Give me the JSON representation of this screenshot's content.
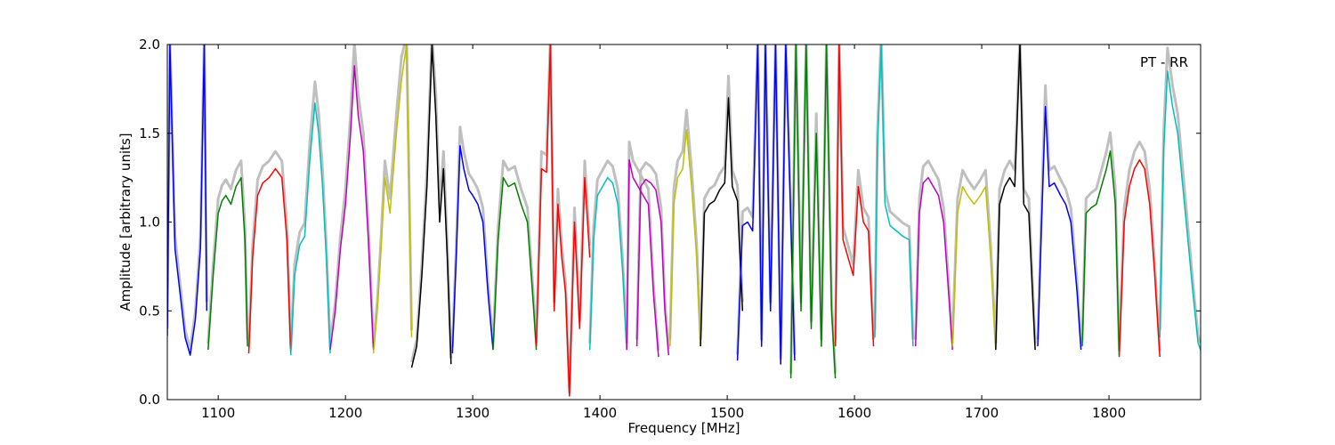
{
  "chart_data": {
    "type": "line",
    "xlabel": "Frequency [MHz]",
    "ylabel": "Amplitude [arbitrary units]",
    "annotation": "PT - RR",
    "annotation_position": "top-right",
    "xlim": [
      1060,
      1872
    ],
    "ylim": [
      0.0,
      2.0
    ],
    "xticks": [
      1100,
      1200,
      1300,
      1400,
      1500,
      1600,
      1700,
      1800
    ],
    "xtick_labels": [
      "1100",
      "1200",
      "1300",
      "1400",
      "1500",
      "1600",
      "1700",
      "1800"
    ],
    "yticks": [
      0.0,
      0.5,
      1.0,
      1.5,
      2.0
    ],
    "ytick_labels": [
      "0.0",
      "0.5",
      "1.0",
      "1.5",
      "2.0"
    ],
    "grid": false,
    "background_series_color": "#bfbfbf",
    "series": [
      {
        "color": "#0000ff",
        "x": [
          1060,
          1062,
          1066,
          1070,
          1074,
          1078,
          1082,
          1086,
          1089,
          1091
        ],
        "y": [
          0.36,
          2.0,
          0.85,
          0.6,
          0.35,
          0.25,
          0.45,
          0.85,
          2.0,
          0.5
        ]
      },
      {
        "color": "#008000",
        "x": [
          1092,
          1096,
          1100,
          1103,
          1106,
          1110,
          1114,
          1118,
          1121,
          1123
        ],
        "y": [
          0.28,
          0.7,
          1.05,
          1.12,
          1.15,
          1.1,
          1.2,
          1.25,
          0.9,
          0.3
        ]
      },
      {
        "color": "#ff0000",
        "x": [
          1124,
          1127,
          1131,
          1135,
          1140,
          1145,
          1150,
          1154,
          1157
        ],
        "y": [
          0.26,
          0.8,
          1.15,
          1.22,
          1.25,
          1.3,
          1.25,
          0.9,
          0.26
        ]
      },
      {
        "color": "#00bfbf",
        "x": [
          1157,
          1160,
          1164,
          1168,
          1172,
          1176,
          1179,
          1182,
          1185,
          1188
        ],
        "y": [
          0.25,
          0.7,
          0.87,
          0.92,
          1.35,
          1.67,
          1.5,
          1.2,
          0.8,
          0.26
        ]
      },
      {
        "color": "#bf00bf",
        "x": [
          1188,
          1192,
          1196,
          1200,
          1204,
          1207,
          1210,
          1214,
          1218,
          1222
        ],
        "y": [
          0.28,
          0.5,
          0.85,
          1.1,
          1.5,
          1.88,
          1.6,
          1.4,
          0.9,
          0.28
        ]
      },
      {
        "color": "#bfbf00",
        "x": [
          1222,
          1225,
          1228,
          1231,
          1235,
          1240,
          1244,
          1248,
          1252
        ],
        "y": [
          0.26,
          0.5,
          0.85,
          1.25,
          1.05,
          1.5,
          1.8,
          2.0,
          0.35
        ]
      },
      {
        "color": "#000000",
        "x": [
          1252,
          1256,
          1260,
          1264,
          1268,
          1271,
          1274,
          1277,
          1280,
          1283
        ],
        "y": [
          0.18,
          0.3,
          0.7,
          1.2,
          2.0,
          1.6,
          1.0,
          1.3,
          0.8,
          0.2
        ]
      },
      {
        "color": "#0000ff",
        "x": [
          1284,
          1287,
          1290,
          1293,
          1297,
          1300,
          1304,
          1308,
          1312,
          1316
        ],
        "y": [
          0.26,
          0.8,
          1.43,
          1.3,
          1.18,
          1.15,
          1.1,
          1.0,
          0.6,
          0.28
        ]
      },
      {
        "color": "#008000",
        "x": [
          1316,
          1320,
          1324,
          1328,
          1333,
          1338,
          1343,
          1348,
          1350
        ],
        "y": [
          0.28,
          0.9,
          1.25,
          1.2,
          1.22,
          1.1,
          1.0,
          0.5,
          0.28
        ]
      },
      {
        "color": "#ff0000",
        "x": [
          1350,
          1354,
          1358,
          1361,
          1364,
          1367,
          1370,
          1373,
          1376,
          1380,
          1384,
          1388,
          1392
        ],
        "y": [
          0.3,
          1.3,
          1.28,
          2.0,
          0.5,
          1.1,
          0.8,
          0.6,
          0.02,
          1.0,
          0.4,
          1.25,
          0.8
        ]
      },
      {
        "color": "#00bfbf",
        "x": [
          1392,
          1395,
          1398,
          1402,
          1406,
          1410,
          1414,
          1418,
          1421
        ],
        "y": [
          0.28,
          0.9,
          1.15,
          1.2,
          1.25,
          1.22,
          1.1,
          0.7,
          0.28
        ]
      },
      {
        "color": "#bf00bf",
        "x": [
          1421,
          1423,
          1426,
          1430,
          1434,
          1438,
          1442,
          1446
        ],
        "y": [
          0.28,
          1.35,
          1.25,
          1.2,
          1.15,
          1.1,
          0.6,
          0.24
        ]
      },
      {
        "color": "#bf00bf",
        "x": [
          1429,
          1432,
          1436,
          1440,
          1444,
          1448,
          1451,
          1454
        ],
        "y": [
          0.3,
          1.2,
          1.24,
          1.22,
          1.18,
          1.0,
          0.5,
          0.25
        ]
      },
      {
        "color": "#bfbf00",
        "x": [
          1455,
          1458,
          1461,
          1465,
          1468,
          1472,
          1476,
          1479
        ],
        "y": [
          0.3,
          1.1,
          1.25,
          1.3,
          1.52,
          1.2,
          0.8,
          0.3
        ]
      },
      {
        "color": "#000000",
        "x": [
          1479,
          1482,
          1486,
          1490,
          1494,
          1498,
          1501,
          1504,
          1508,
          1512
        ],
        "y": [
          0.3,
          1.05,
          1.1,
          1.12,
          1.18,
          1.22,
          1.7,
          1.2,
          1.12,
          0.5
        ]
      },
      {
        "color": "#0000ff",
        "x": [
          1508,
          1512,
          1516,
          1520,
          1524,
          1527,
          1530,
          1534,
          1538,
          1542,
          1546,
          1550,
          1553
        ],
        "y": [
          0.22,
          0.98,
          1.0,
          0.95,
          2.0,
          0.3,
          2.0,
          0.5,
          2.0,
          0.2,
          2.0,
          1.0,
          0.22
        ]
      },
      {
        "color": "#008000",
        "x": [
          1550,
          1554,
          1558,
          1562,
          1566,
          1570,
          1574,
          1578,
          1582,
          1585
        ],
        "y": [
          0.12,
          2.0,
          0.5,
          2.0,
          0.4,
          1.5,
          0.3,
          2.0,
          0.5,
          0.12
        ]
      },
      {
        "color": "#ff0000",
        "x": [
          1585,
          1588,
          1591,
          1595,
          1599,
          1603,
          1607,
          1611,
          1615
        ],
        "y": [
          0.3,
          2.0,
          0.9,
          0.8,
          0.7,
          1.2,
          1.0,
          0.95,
          0.3
        ]
      },
      {
        "color": "#00bfbf",
        "x": [
          1616,
          1618,
          1621,
          1624,
          1628,
          1633,
          1638,
          1643,
          1646
        ],
        "y": [
          0.35,
          1.4,
          2.0,
          1.1,
          0.98,
          0.95,
          0.92,
          0.9,
          0.3
        ]
      },
      {
        "color": "#bf00bf",
        "x": [
          1648,
          1651,
          1654,
          1658,
          1662,
          1666,
          1670,
          1674,
          1677
        ],
        "y": [
          0.3,
          1.05,
          1.22,
          1.25,
          1.2,
          1.15,
          1.0,
          0.6,
          0.28
        ]
      },
      {
        "color": "#bfbf00",
        "x": [
          1677,
          1681,
          1685,
          1689,
          1694,
          1699,
          1703,
          1707,
          1711
        ],
        "y": [
          0.3,
          1.05,
          1.2,
          1.15,
          1.1,
          1.15,
          1.2,
          0.8,
          0.28
        ]
      },
      {
        "color": "#000000",
        "x": [
          1711,
          1714,
          1718,
          1722,
          1726,
          1730,
          1733,
          1737,
          1742
        ],
        "y": [
          0.28,
          1.1,
          1.2,
          1.25,
          1.2,
          2.0,
          1.1,
          1.05,
          0.28
        ]
      },
      {
        "color": "#0000ff",
        "x": [
          1744,
          1747,
          1750,
          1753,
          1757,
          1762,
          1766,
          1770,
          1775,
          1778
        ],
        "y": [
          0.3,
          1.0,
          1.65,
          1.2,
          1.22,
          1.15,
          1.1,
          1.0,
          0.6,
          0.28
        ]
      },
      {
        "color": "#008000",
        "x": [
          1779,
          1782,
          1786,
          1790,
          1794,
          1798,
          1801,
          1805,
          1808
        ],
        "y": [
          0.3,
          1.05,
          1.08,
          1.1,
          1.2,
          1.3,
          1.4,
          1.1,
          0.25
        ]
      },
      {
        "color": "#ff0000",
        "x": [
          1808,
          1812,
          1816,
          1820,
          1824,
          1828,
          1832,
          1836,
          1840
        ],
        "y": [
          0.24,
          1.0,
          1.2,
          1.3,
          1.35,
          1.3,
          1.1,
          0.7,
          0.24
        ]
      },
      {
        "color": "#00bfbf",
        "x": [
          1840,
          1843,
          1846,
          1850,
          1854,
          1858,
          1862,
          1866,
          1870,
          1872
        ],
        "y": [
          0.35,
          1.4,
          1.85,
          1.65,
          1.5,
          1.2,
          0.9,
          0.6,
          0.32,
          0.28
        ]
      }
    ]
  }
}
